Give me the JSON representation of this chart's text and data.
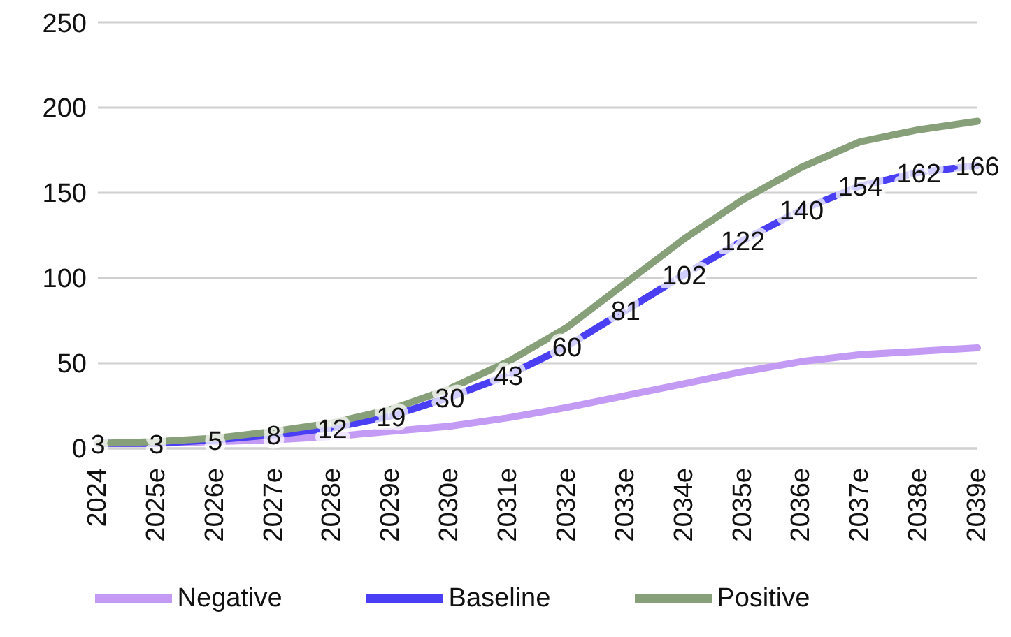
{
  "chart_data": {
    "type": "line",
    "categories": [
      "2024",
      "2025e",
      "2026e",
      "2027e",
      "2028e",
      "2029e",
      "2030e",
      "2031e",
      "2032e",
      "2033e",
      "2034e",
      "2035e",
      "2036e",
      "2037e",
      "2038e",
      "2039e"
    ],
    "series": [
      {
        "name": "Negative",
        "color": "#c39bf5",
        "values": [
          3,
          3,
          4,
          5,
          7,
          10,
          13,
          18,
          24,
          31,
          38,
          45,
          51,
          55,
          57,
          59
        ]
      },
      {
        "name": "Baseline",
        "color": "#4a3ff5",
        "values": [
          3,
          3,
          5,
          8,
          12,
          19,
          30,
          43,
          60,
          81,
          102,
          122,
          140,
          154,
          162,
          166
        ],
        "value_labels": [
          "3",
          "3",
          "5",
          "8",
          "12",
          "19",
          "30",
          "43",
          "60",
          "81",
          "102",
          "122",
          "140",
          "154",
          "162",
          "166"
        ]
      },
      {
        "name": "Positive",
        "color": "#87a07a",
        "values": [
          3,
          4,
          6,
          10,
          15,
          23,
          35,
          51,
          71,
          97,
          123,
          146,
          165,
          180,
          187,
          192
        ]
      }
    ],
    "ylim": [
      0,
      250
    ],
    "yticks": [
      0,
      50,
      100,
      150,
      200,
      250
    ],
    "grid": "y",
    "legend": "bottom",
    "line_style": "solid"
  }
}
